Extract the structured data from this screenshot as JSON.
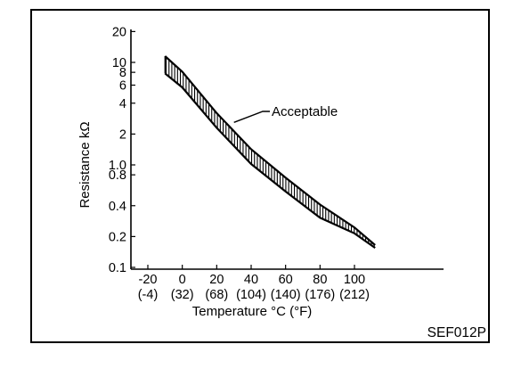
{
  "chart_data": {
    "type": "area",
    "xlabel": "Temperature °C (°F)",
    "ylabel": "Resistance kΩ",
    "y_scale": "log",
    "xlim": [
      -30,
      150
    ],
    "ylim": [
      0.1,
      20
    ],
    "x_ticks": [
      {
        "value": -20,
        "celsius": "-20",
        "fahrenheit": "(-4)"
      },
      {
        "value": 0,
        "celsius": "0",
        "fahrenheit": "(32)"
      },
      {
        "value": 20,
        "celsius": "20",
        "fahrenheit": "(68)"
      },
      {
        "value": 40,
        "celsius": "40",
        "fahrenheit": "(104)"
      },
      {
        "value": 60,
        "celsius": "60",
        "fahrenheit": "(140)"
      },
      {
        "value": 80,
        "celsius": "80",
        "fahrenheit": "(176)"
      },
      {
        "value": 100,
        "celsius": "100",
        "fahrenheit": "(212)"
      }
    ],
    "y_ticks": [
      {
        "value": 20,
        "label": "20"
      },
      {
        "value": 10,
        "label": "10"
      },
      {
        "value": 8,
        "label": "8"
      },
      {
        "value": 6,
        "label": "6"
      },
      {
        "value": 4,
        "label": "4"
      },
      {
        "value": 2,
        "label": "2"
      },
      {
        "value": 1.0,
        "label": "1.0"
      },
      {
        "value": 0.8,
        "label": "0.8"
      },
      {
        "value": 0.4,
        "label": "0.4"
      },
      {
        "value": 0.2,
        "label": "0.2"
      },
      {
        "value": 0.1,
        "label": "0.1"
      }
    ],
    "band": {
      "name": "Acceptable",
      "upper": [
        {
          "x": -10,
          "y": 11.5
        },
        {
          "x": 0,
          "y": 8.1
        },
        {
          "x": 20,
          "y": 3.2
        },
        {
          "x": 40,
          "y": 1.42
        },
        {
          "x": 60,
          "y": 0.75
        },
        {
          "x": 80,
          "y": 0.41
        },
        {
          "x": 100,
          "y": 0.245
        },
        {
          "x": 112,
          "y": 0.165
        }
      ],
      "lower": [
        {
          "x": -10,
          "y": 7.8
        },
        {
          "x": 0,
          "y": 5.7
        },
        {
          "x": 20,
          "y": 2.3
        },
        {
          "x": 40,
          "y": 1.02
        },
        {
          "x": 60,
          "y": 0.55
        },
        {
          "x": 80,
          "y": 0.305
        },
        {
          "x": 100,
          "y": 0.215
        },
        {
          "x": 112,
          "y": 0.155
        }
      ]
    },
    "annotation": {
      "text": "Acceptable",
      "target": {
        "x": 30,
        "y": 2.6
      }
    },
    "reference_code": "SEF012P",
    "grid": false
  }
}
